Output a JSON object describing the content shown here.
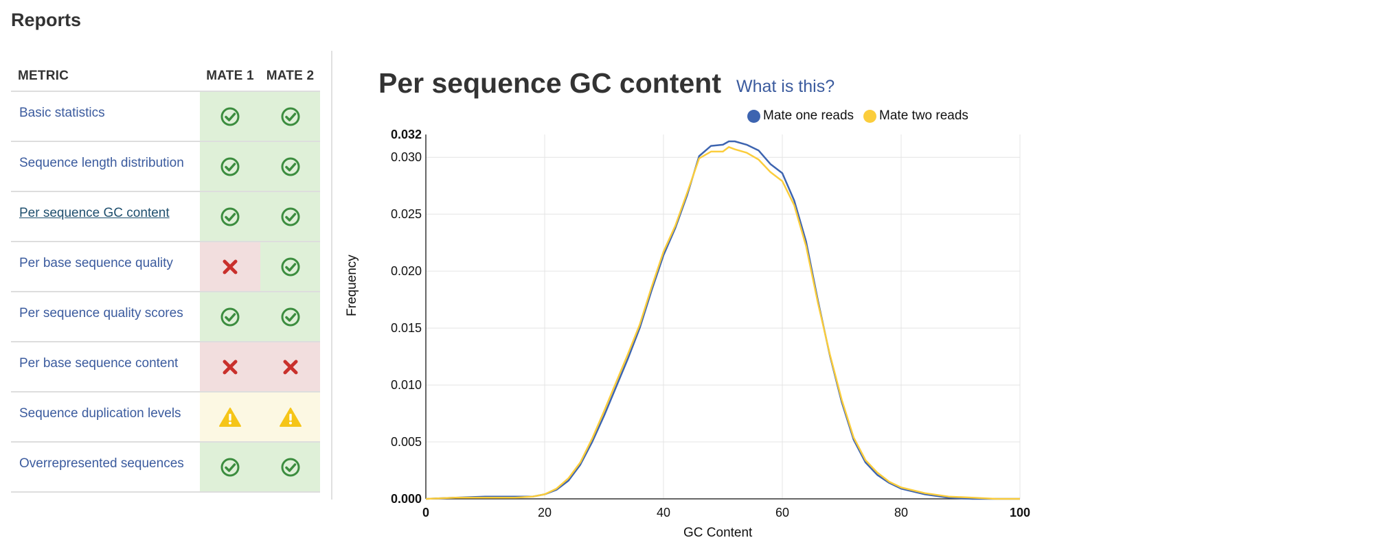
{
  "page": {
    "title": "Reports"
  },
  "table": {
    "headers": {
      "metric": "METRIC",
      "mate1": "MATE 1",
      "mate2": "MATE 2"
    },
    "rows": [
      {
        "label": "Basic statistics",
        "mate1": "pass",
        "mate2": "pass"
      },
      {
        "label": "Sequence length distribution",
        "mate1": "pass",
        "mate2": "pass"
      },
      {
        "label": "Per sequence GC content",
        "mate1": "pass",
        "mate2": "pass",
        "active": true
      },
      {
        "label": "Per base sequence quality",
        "mate1": "fail",
        "mate2": "pass"
      },
      {
        "label": "Per sequence quality scores",
        "mate1": "pass",
        "mate2": "pass"
      },
      {
        "label": "Per base sequence content",
        "mate1": "fail",
        "mate2": "fail"
      },
      {
        "label": "Sequence duplication levels",
        "mate1": "warn",
        "mate2": "warn"
      },
      {
        "label": "Overrepresented sequences",
        "mate1": "pass",
        "mate2": "pass"
      }
    ]
  },
  "status_icons": {
    "pass": "check-circle-icon",
    "fail": "x-mark-icon",
    "warn": "warning-triangle-icon"
  },
  "colors": {
    "pass_bg": "#dff0d8",
    "fail_bg": "#f2dede",
    "warn_bg": "#fcf8e3",
    "pass_icon": "#3c8d3f",
    "fail_icon": "#c9302c",
    "warn_icon": "#f5c518",
    "link": "#3b5b9e",
    "series1": "#3d64b0",
    "series2": "#fbcd3c"
  },
  "panel": {
    "title": "Per sequence GC content",
    "help_link": "What is this?"
  },
  "chart_data": {
    "type": "line",
    "xlabel": "GC Content",
    "ylabel": "Frequency",
    "xlim": [
      0,
      100
    ],
    "ylim": [
      0,
      0.032
    ],
    "x_ticks": [
      "0",
      "20",
      "40",
      "60",
      "80",
      "100"
    ],
    "y_ticks": [
      "0.000",
      "0.005",
      "0.010",
      "0.015",
      "0.020",
      "0.025",
      "0.030",
      "0.032"
    ],
    "grid": true,
    "legend_position": "top-right",
    "x": [
      0,
      5,
      10,
      15,
      18,
      20,
      22,
      24,
      26,
      28,
      30,
      32,
      34,
      36,
      38,
      40,
      42,
      44,
      46,
      48,
      50,
      51,
      52,
      54,
      56,
      58,
      60,
      62,
      64,
      66,
      68,
      70,
      72,
      74,
      76,
      78,
      80,
      84,
      88,
      92,
      96,
      100
    ],
    "series": [
      {
        "name": "Mate one reads",
        "values": [
          0.0,
          0.0001,
          0.0002,
          0.0002,
          0.0002,
          0.0004,
          0.0008,
          0.0016,
          0.003,
          0.005,
          0.0073,
          0.0098,
          0.0123,
          0.015,
          0.0183,
          0.0214,
          0.0238,
          0.0267,
          0.0301,
          0.031,
          0.0311,
          0.0314,
          0.0314,
          0.0311,
          0.0306,
          0.0294,
          0.0286,
          0.0262,
          0.0226,
          0.0174,
          0.0126,
          0.0085,
          0.0052,
          0.0032,
          0.0021,
          0.0014,
          0.0009,
          0.0004,
          0.0001,
          0.0,
          0.0,
          0.0
        ]
      },
      {
        "name": "Mate two reads",
        "values": [
          0.0,
          0.0001,
          0.0001,
          0.0001,
          0.0002,
          0.0004,
          0.0009,
          0.0018,
          0.0032,
          0.0053,
          0.0077,
          0.0102,
          0.0127,
          0.0153,
          0.0186,
          0.0217,
          0.024,
          0.0269,
          0.0299,
          0.0305,
          0.0305,
          0.0309,
          0.0307,
          0.0304,
          0.0298,
          0.0287,
          0.0279,
          0.0258,
          0.0222,
          0.0172,
          0.0127,
          0.0087,
          0.0054,
          0.0034,
          0.0023,
          0.0015,
          0.001,
          0.0005,
          0.0002,
          0.0001,
          0.0,
          0.0
        ]
      }
    ]
  }
}
